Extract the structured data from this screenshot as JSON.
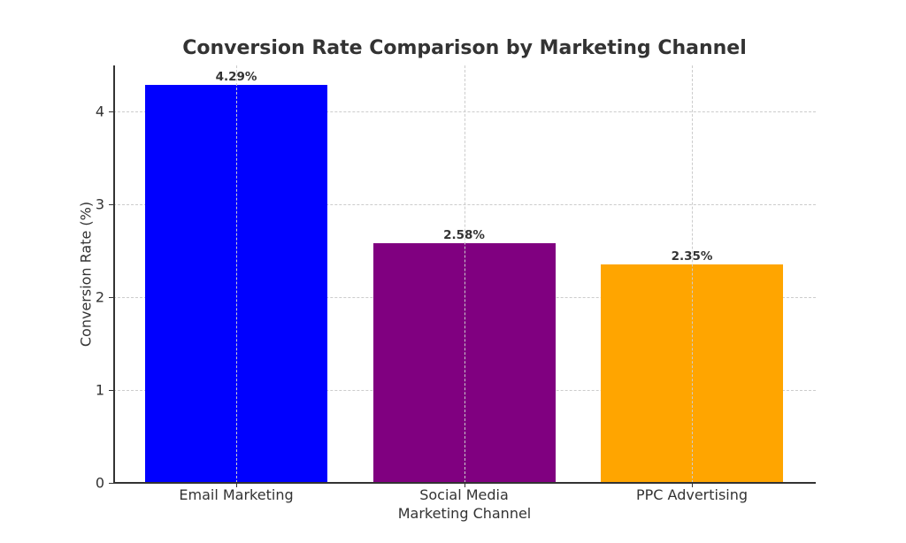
{
  "chart_data": {
    "type": "bar",
    "title": "Conversion Rate Comparison by Marketing Channel",
    "xlabel": "Marketing Channel",
    "ylabel": "Conversion Rate (%)",
    "categories": [
      "Email Marketing",
      "Social Media",
      "PPC Advertising"
    ],
    "values": [
      4.29,
      2.58,
      2.35
    ],
    "value_labels": [
      "4.29%",
      "2.58%",
      "2.35%"
    ],
    "colors": [
      "#0000ff",
      "#800080",
      "#ffa500"
    ],
    "ylim": [
      0,
      4.5
    ],
    "yticks": [
      0,
      1,
      2,
      3,
      4
    ],
    "grid": true,
    "legend": null
  }
}
